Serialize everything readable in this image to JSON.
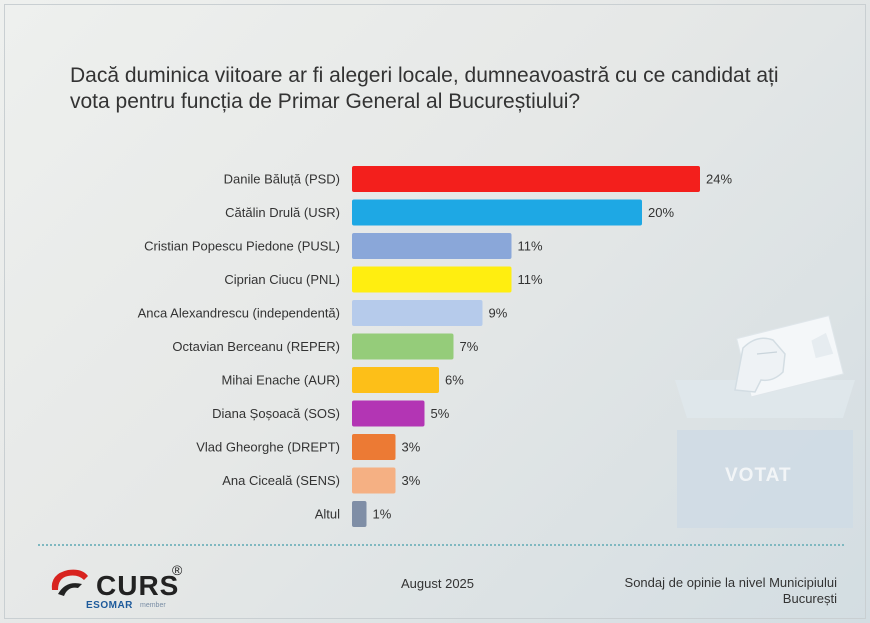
{
  "title": "Dacă duminica viitoare ar fi alegeri locale, dumneavoastră cu ce candidat ați vota pentru funcția de Primar General al Bucureștiului?",
  "chart_data": {
    "type": "bar",
    "orientation": "horizontal",
    "title": "Dacă duminica viitoare ar fi alegeri locale, dumneavoastră cu ce candidat ați vota pentru funcția de Primar General al Bucureștiului?",
    "categories": [
      "Danile Băluță (PSD)",
      "Cătălin Drulă (USR)",
      "Cristian Popescu Piedone (PUSL)",
      "Ciprian Ciucu (PNL)",
      "Anca Alexandrescu (independentă)",
      "Octavian Berceanu (REPER)",
      "Mihai Enache (AUR)",
      "Diana Șoșoacă (SOS)",
      "Vlad Gheorghe (DREPT)",
      "Ana Ciceală (SENS)",
      "Altul"
    ],
    "values": [
      24,
      20,
      11,
      11,
      9,
      7,
      6,
      5,
      3,
      3,
      1
    ],
    "value_labels": [
      "24%",
      "20%",
      "11%",
      "11%",
      "9%",
      "7%",
      "6%",
      "5%",
      "3%",
      "3%",
      "1%"
    ],
    "colors": [
      "#f31f1c",
      "#1ea8e4",
      "#8aa7d9",
      "#ffee10",
      "#b6cbeb",
      "#95cc7a",
      "#fdbf18",
      "#b335b4",
      "#ec7a34",
      "#f5b083",
      "#7f8ea6"
    ],
    "xlim": [
      0,
      24
    ],
    "grid": false,
    "legend": "none"
  },
  "ballot": {
    "label": "VOTAT"
  },
  "footer": {
    "logo_text": "CURS",
    "logo_reg": "®",
    "esomar": "ESOMAR",
    "esomar_member": "member",
    "date": "August 2025",
    "source_line1": "Sondaj de opinie la nivel Municipiului",
    "source_line2": "București"
  }
}
